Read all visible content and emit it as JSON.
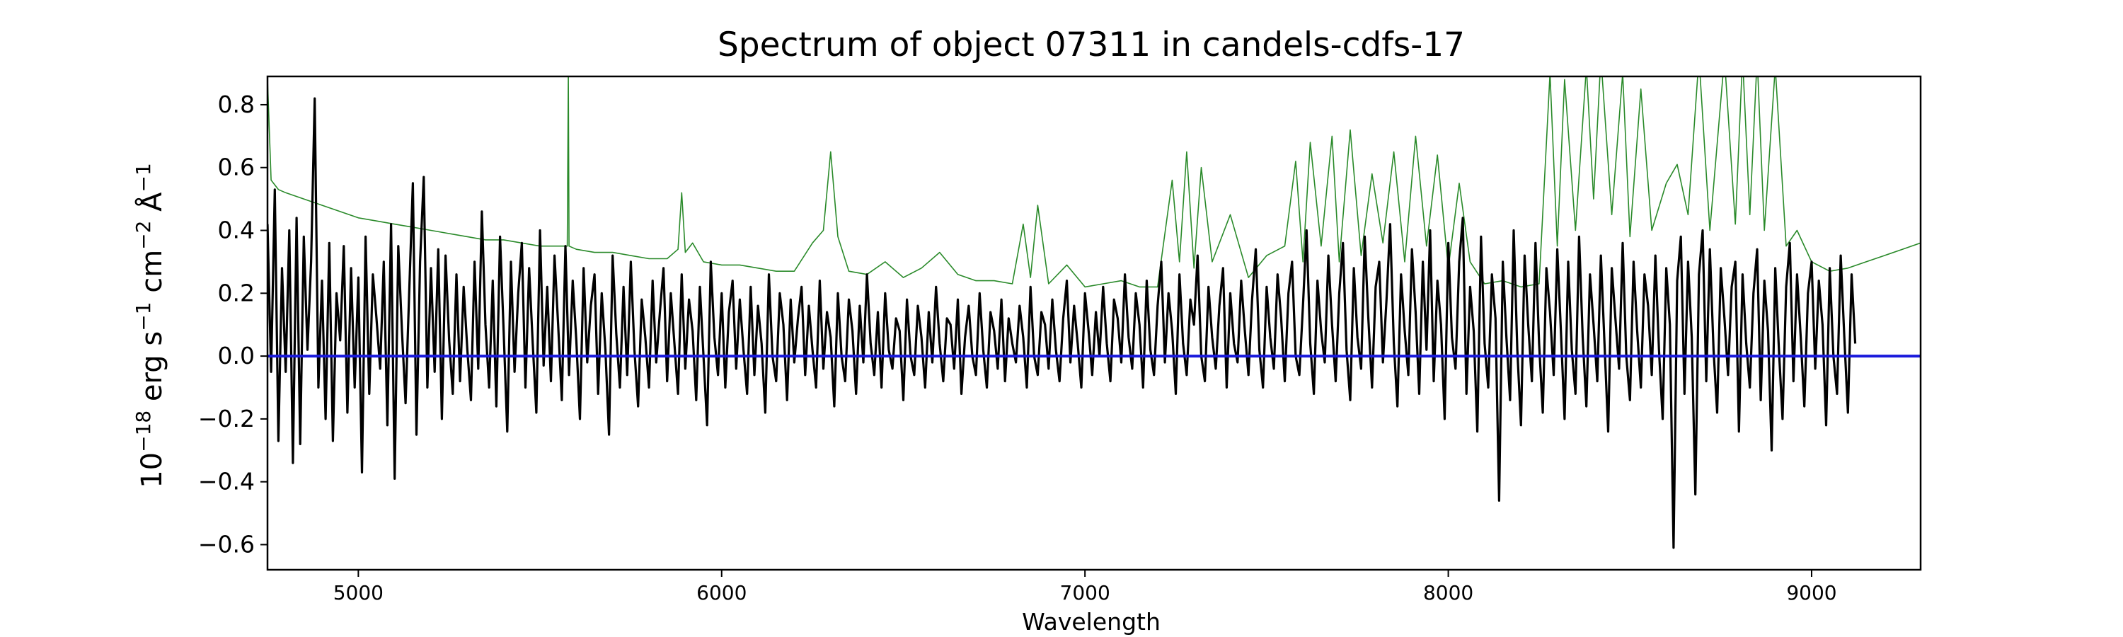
{
  "chart_data": {
    "type": "line",
    "title": "Spectrum of object 07311 in candels-cdfs-17",
    "xlabel": "Wavelength",
    "ylabel": {
      "prefix": "10",
      "prefix_sup": "−18",
      "parts": [
        {
          "t": " erg s",
          "sup": "−1"
        },
        {
          "t": " cm",
          "sup": "−2"
        },
        {
          "t": " Å",
          "sup": "−1"
        }
      ]
    },
    "xlim": [
      4750,
      9300
    ],
    "ylim": [
      -0.68,
      0.89
    ],
    "xticks": [
      5000,
      6000,
      7000,
      8000,
      9000
    ],
    "xtick_labels": [
      "5000",
      "6000",
      "7000",
      "8000",
      "9000"
    ],
    "yticks": [
      -0.6,
      -0.4,
      -0.2,
      0.0,
      0.2,
      0.4,
      0.6,
      0.8
    ],
    "ytick_labels": [
      "−0.6",
      "−0.4",
      "−0.2",
      "0.0",
      "0.2",
      "0.4",
      "0.6",
      "0.8"
    ],
    "grid": false,
    "series": [
      {
        "role": "error",
        "color": "#2a8a2a",
        "x": [
          4750,
          4760,
          4780,
          4800,
          4850,
          4900,
          4950,
          5000,
          5050,
          5100,
          5150,
          5200,
          5250,
          5300,
          5350,
          5400,
          5450,
          5500,
          5550,
          5575,
          5578,
          5580,
          5600,
          5650,
          5700,
          5750,
          5800,
          5850,
          5880,
          5890,
          5900,
          5920,
          5950,
          6000,
          6050,
          6100,
          6150,
          6200,
          6250,
          6280,
          6300,
          6320,
          6350,
          6400,
          6450,
          6500,
          6550,
          6600,
          6650,
          6700,
          6750,
          6800,
          6830,
          6850,
          6870,
          6900,
          6950,
          7000,
          7050,
          7100,
          7150,
          7200,
          7240,
          7260,
          7280,
          7300,
          7320,
          7350,
          7400,
          7450,
          7500,
          7550,
          7580,
          7600,
          7620,
          7650,
          7680,
          7700,
          7730,
          7760,
          7790,
          7820,
          7850,
          7880,
          7910,
          7940,
          7970,
          8000,
          8030,
          8060,
          8100,
          8150,
          8200,
          8250,
          8280,
          8300,
          8320,
          8350,
          8380,
          8400,
          8420,
          8450,
          8480,
          8500,
          8530,
          8560,
          8600,
          8630,
          8660,
          8690,
          8720,
          8760,
          8790,
          8810,
          8830,
          8850,
          8870,
          8900,
          8930,
          8960,
          9000,
          9050,
          9100,
          9150,
          9200,
          9250,
          9300
        ],
        "y": [
          0.88,
          0.56,
          0.53,
          0.52,
          0.5,
          0.48,
          0.46,
          0.44,
          0.43,
          0.42,
          0.41,
          0.4,
          0.39,
          0.38,
          0.37,
          0.37,
          0.36,
          0.35,
          0.35,
          0.35,
          0.9,
          0.35,
          0.34,
          0.33,
          0.33,
          0.32,
          0.31,
          0.31,
          0.34,
          0.52,
          0.33,
          0.36,
          0.3,
          0.29,
          0.29,
          0.28,
          0.27,
          0.27,
          0.36,
          0.4,
          0.65,
          0.38,
          0.27,
          0.26,
          0.3,
          0.25,
          0.28,
          0.33,
          0.26,
          0.24,
          0.24,
          0.23,
          0.42,
          0.25,
          0.48,
          0.23,
          0.29,
          0.22,
          0.23,
          0.24,
          0.22,
          0.22,
          0.56,
          0.3,
          0.65,
          0.28,
          0.6,
          0.3,
          0.45,
          0.25,
          0.32,
          0.35,
          0.62,
          0.3,
          0.68,
          0.35,
          0.7,
          0.3,
          0.72,
          0.32,
          0.58,
          0.36,
          0.65,
          0.3,
          0.7,
          0.35,
          0.64,
          0.28,
          0.55,
          0.3,
          0.23,
          0.24,
          0.22,
          0.23,
          0.9,
          0.35,
          0.88,
          0.4,
          0.92,
          0.5,
          0.95,
          0.45,
          0.9,
          0.38,
          0.85,
          0.4,
          0.55,
          0.61,
          0.45,
          0.95,
          0.4,
          0.95,
          0.42,
          0.95,
          0.45,
          0.95,
          0.4,
          0.92,
          0.35,
          0.4,
          0.3,
          0.27,
          0.28,
          0.3,
          0.32,
          0.34,
          0.36
        ]
      },
      {
        "role": "model",
        "color": "#1a1adc",
        "x": [
          4750,
          9300
        ],
        "y": [
          0.0,
          0.0
        ]
      }
    ],
    "flux": {
      "color": "#000000",
      "x_start": 4750,
      "x_step": 10,
      "y": [
        0.42,
        -0.05,
        0.53,
        -0.27,
        0.28,
        -0.05,
        0.4,
        -0.34,
        0.44,
        -0.28,
        0.38,
        0.02,
        0.3,
        0.82,
        -0.1,
        0.24,
        -0.2,
        0.36,
        -0.27,
        0.2,
        0.05,
        0.35,
        -0.18,
        0.28,
        -0.1,
        0.25,
        -0.37,
        0.38,
        -0.12,
        0.26,
        0.12,
        -0.04,
        0.3,
        -0.22,
        0.42,
        -0.39,
        0.35,
        0.08,
        -0.15,
        0.2,
        0.55,
        -0.25,
        0.3,
        0.57,
        -0.1,
        0.28,
        -0.05,
        0.34,
        -0.2,
        0.32,
        0.05,
        -0.12,
        0.26,
        -0.08,
        0.22,
        0.02,
        -0.14,
        0.3,
        -0.04,
        0.46,
        0.1,
        -0.1,
        0.24,
        -0.16,
        0.38,
        0.08,
        -0.24,
        0.3,
        -0.05,
        0.2,
        0.36,
        -0.1,
        0.28,
        0.04,
        -0.18,
        0.4,
        -0.03,
        0.22,
        -0.08,
        0.32,
        0.1,
        -0.14,
        0.35,
        -0.06,
        0.24,
        0.05,
        -0.2,
        0.28,
        -0.02,
        0.16,
        0.26,
        -0.12,
        0.2,
        0.02,
        -0.25,
        0.32,
        0.07,
        -0.1,
        0.22,
        -0.06,
        0.3,
        0.02,
        -0.16,
        0.18,
        0.06,
        -0.1,
        0.24,
        -0.02,
        0.14,
        0.28,
        -0.08,
        0.2,
        0.04,
        -0.12,
        0.26,
        -0.04,
        0.18,
        0.08,
        -0.14,
        0.22,
        0.0,
        -0.22,
        0.3,
        0.06,
        -0.06,
        0.2,
        -0.1,
        0.14,
        0.24,
        -0.04,
        0.18,
        0.02,
        -0.12,
        0.22,
        -0.06,
        0.16,
        0.04,
        -0.18,
        0.26,
        0.0,
        -0.08,
        0.2,
        0.1,
        -0.14,
        0.18,
        -0.02,
        0.12,
        0.22,
        -0.06,
        0.16,
        0.02,
        -0.1,
        0.24,
        -0.04,
        0.14,
        0.06,
        -0.16,
        0.2,
        0.0,
        -0.08,
        0.18,
        0.08,
        -0.12,
        0.16,
        -0.02,
        0.26,
        0.04,
        -0.06,
        0.14,
        -0.1,
        0.2,
        0.02,
        -0.04,
        0.12,
        0.08,
        -0.14,
        0.18,
        0.0,
        -0.06,
        0.16,
        0.06,
        -0.1,
        0.14,
        -0.02,
        0.22,
        0.04,
        -0.08,
        0.12,
        0.1,
        -0.04,
        0.18,
        -0.12,
        0.06,
        0.16,
        0.0,
        -0.06,
        0.2,
        0.02,
        -0.1,
        0.14,
        0.08,
        -0.04,
        0.18,
        -0.08,
        0.12,
        0.04,
        -0.02,
        0.16,
        0.06,
        -0.1,
        0.22,
        0.0,
        -0.06,
        0.14,
        0.1,
        -0.04,
        0.18,
        0.02,
        -0.08,
        0.12,
        0.24,
        -0.02,
        0.16,
        0.04,
        -0.1,
        0.2,
        0.08,
        -0.06,
        0.14,
        0.0,
        0.22,
        0.04,
        -0.08,
        0.18,
        0.12,
        -0.02,
        0.26,
        0.06,
        -0.04,
        0.2,
        0.1,
        -0.1,
        0.24,
        0.02,
        -0.06,
        0.16,
        0.3,
        -0.02,
        0.2,
        0.08,
        -0.12,
        0.26,
        0.04,
        -0.06,
        0.18,
        0.1,
        0.32,
        0.0,
        -0.08,
        0.22,
        0.06,
        -0.04,
        0.16,
        0.28,
        -0.1,
        0.2,
        0.04,
        -0.02,
        0.24,
        0.08,
        -0.06,
        0.18,
        0.34,
        0.02,
        -0.1,
        0.22,
        0.06,
        -0.04,
        0.26,
        0.12,
        -0.08,
        0.2,
        0.3,
        0.0,
        -0.06,
        0.16,
        0.4,
        0.04,
        -0.12,
        0.24,
        0.08,
        -0.02,
        0.32,
        0.1,
        -0.08,
        0.2,
        0.36,
        0.02,
        -0.14,
        0.28,
        0.06,
        -0.04,
        0.38,
        0.12,
        -0.1,
        0.22,
        0.3,
        -0.02,
        0.18,
        0.42,
        0.04,
        -0.16,
        0.26,
        0.08,
        -0.06,
        0.34,
        0.14,
        -0.12,
        0.3,
        0.02,
        0.4,
        -0.08,
        0.24,
        0.1,
        -0.2,
        0.36,
        0.06,
        -0.04,
        0.3,
        0.44,
        -0.12,
        0.22,
        0.08,
        -0.24,
        0.38,
        0.04,
        -0.1,
        0.26,
        0.12,
        -0.46,
        0.3,
        0.06,
        -0.14,
        0.4,
        0.02,
        -0.22,
        0.32,
        0.1,
        -0.08,
        0.36,
        0.04,
        -0.18,
        0.28,
        0.14,
        -0.06,
        0.34,
        0.08,
        -0.2,
        0.3,
        0.02,
        -0.12,
        0.38,
        0.06,
        -0.16,
        0.26,
        0.1,
        -0.08,
        0.32,
        0.04,
        -0.24,
        0.28,
        0.12,
        -0.04,
        0.36,
        0.0,
        -0.14,
        0.3,
        0.08,
        -0.1,
        0.26,
        0.16,
        -0.06,
        0.32,
        0.02,
        -0.2,
        0.28,
        0.1,
        -0.61,
        0.24,
        0.38,
        -0.12,
        0.3,
        0.06,
        -0.44,
        0.26,
        0.4,
        -0.08,
        0.34,
        0.02,
        -0.18,
        0.28,
        0.12,
        -0.06,
        0.22,
        0.3,
        -0.24,
        0.26,
        0.04,
        -0.1,
        0.2,
        0.34,
        -0.14,
        0.24,
        0.08,
        -0.3,
        0.28,
        0.02,
        -0.2,
        0.22,
        0.36,
        -0.08,
        0.26,
        0.06,
        -0.16,
        0.2,
        0.3,
        -0.04,
        0.24,
        0.1,
        -0.22,
        0.28,
        0.0,
        -0.12,
        0.32,
        0.06,
        -0.18,
        0.26,
        0.04
      ]
    }
  }
}
